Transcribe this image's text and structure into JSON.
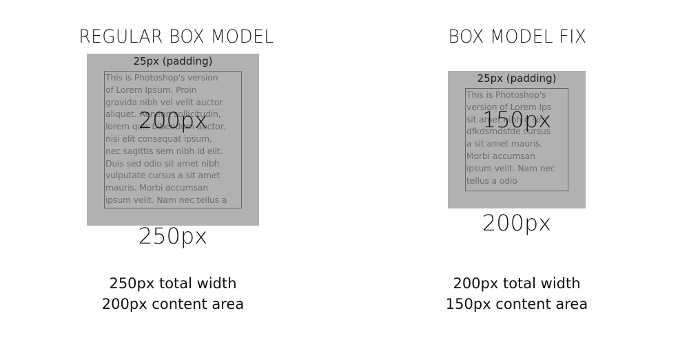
{
  "left_panel": {
    "title": "REGULAR BOX MODEL",
    "padding_label": "25px (padding)",
    "lorem_text": "This is Photoshop's version\nof Lorem Ipsum. Proin\ngravida nibh vel velit auctor\naliquet. Aenean sollicitudin,\nlorem quis bibendum auctor,\nnisi elit consequat ipsum,\nnec sagittis sem nibh id elit.\nDuis sed odio sit amet nibh\nvulputate cursus a sit amet\nmauris. Morbi accumsan\nipsum velit. Nam nec tellus a",
    "content_size": "200px",
    "outer_size": "250px",
    "summary_line1": "250px total width",
    "summary_line2": "200px content area"
  },
  "right_panel": {
    "title": "BOX MODEL FIX",
    "padding_label": "25px (padding)",
    "lorem_text": "This is Photoshop's\nversion  of Lorem Ips\nsit amet nibh d sirs\ndfkdsmdsfde cursus\na sit amet mauris.\nMorbi accumsan\nipsum velit. Nam nec\ntellus a odio",
    "content_size": "150px",
    "outer_size": "200px",
    "summary_line1": "200px total width",
    "summary_line2": "150px content area"
  },
  "colors": {
    "box_fill": "#b1b1b1",
    "content_border": "#666666",
    "lorem_text": "#6f6f6f",
    "background": "#ffffff"
  }
}
